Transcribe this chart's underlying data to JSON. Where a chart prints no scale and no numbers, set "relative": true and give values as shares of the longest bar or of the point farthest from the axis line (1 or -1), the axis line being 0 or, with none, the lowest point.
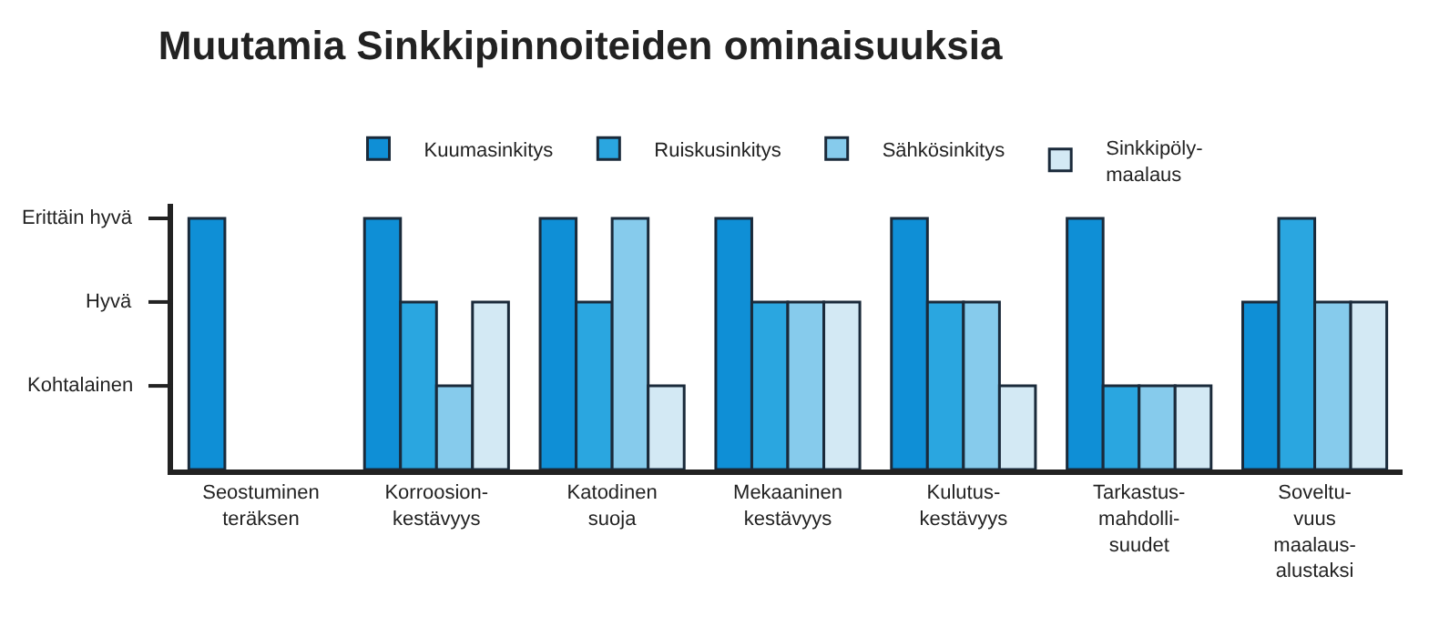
{
  "chart_data": {
    "type": "bar",
    "title": "Muutamia Sinkkipinnoiteiden ominaisuuksia",
    "categories": [
      "Seostuminen\nteräksen",
      "Korroosion-\nkestävyys",
      "Katodinen\nsuoja",
      "Mekaaninen\nkestävyys",
      "Kulutus-\nkestävyys",
      "Tarkastus-\nmahdolli-\nsuudet",
      "Soveltu-\nvuus\nmaalaus-\nalustaksi"
    ],
    "series": [
      {
        "name": "Kuumasinkitys",
        "color": "#0f8fd6",
        "values": [
          1,
          1,
          1,
          1,
          1,
          1,
          0.667
        ]
      },
      {
        "name": "Ruiskusinkitys",
        "color": "#2aa6e0",
        "values": [
          null,
          0.667,
          0.667,
          0.667,
          0.667,
          0.333,
          1
        ]
      },
      {
        "name": "Sähkösinkitys",
        "color": "#86cbec",
        "values": [
          null,
          0.333,
          1,
          0.667,
          0.667,
          0.333,
          0.667
        ]
      },
      {
        "name": "Sinkkipöly-\nmaalaus",
        "color": "#d3e9f4",
        "values": [
          null,
          0.667,
          0.333,
          0.667,
          0.333,
          0.333,
          0.667
        ]
      }
    ],
    "relative": true,
    "annotations": [
      "Erittäin hyvä",
      "Hyvä",
      "Kohtalainen"
    ],
    "grid": false,
    "legend": "top"
  }
}
